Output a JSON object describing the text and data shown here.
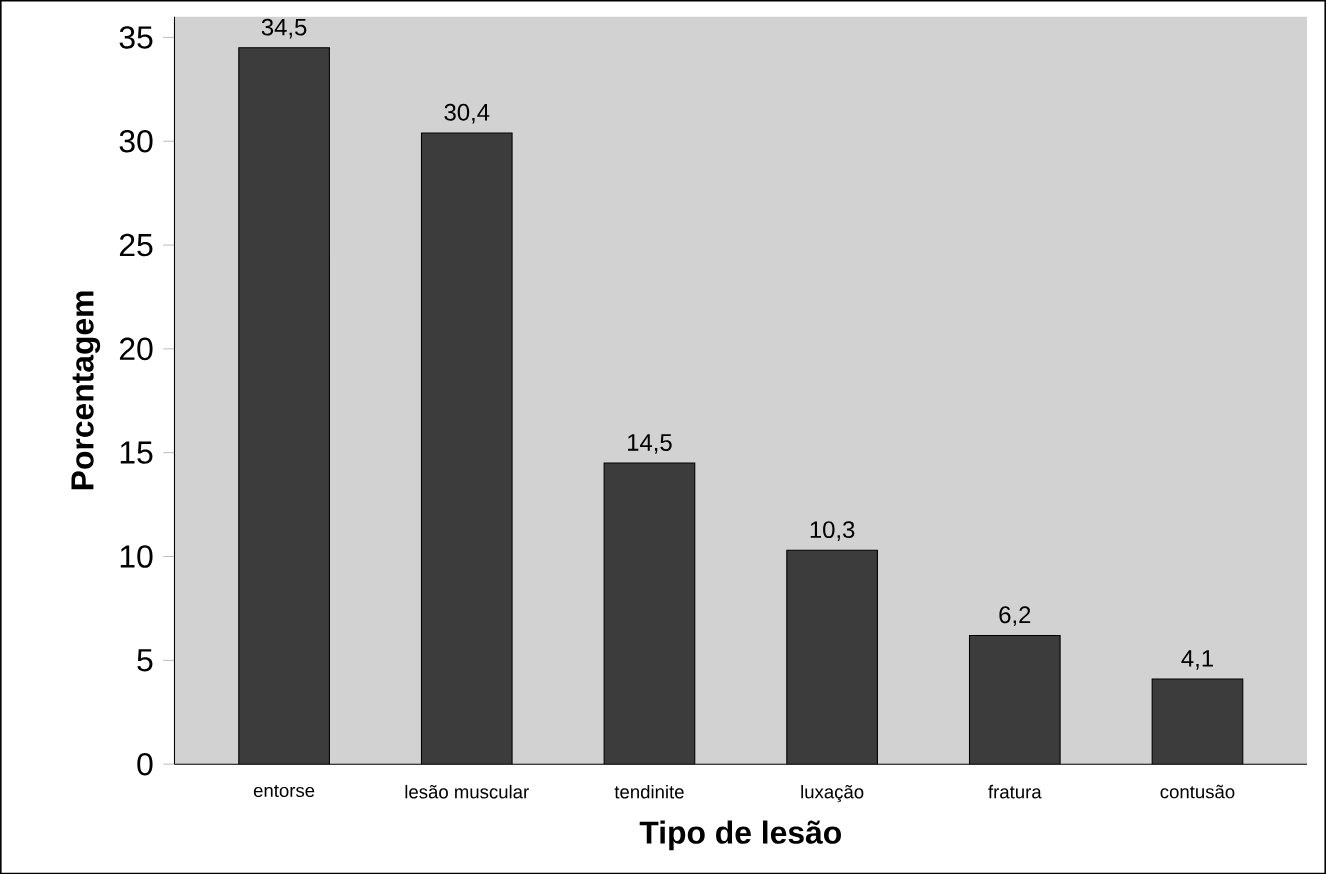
{
  "chart_data": {
    "type": "bar",
    "xlabel": "Tipo de lesão",
    "ylabel": "Porcentagem",
    "categories": [
      "entorse",
      "lesão muscular",
      "tendinite",
      "luxação",
      "fratura",
      "contusão"
    ],
    "values": [
      34.5,
      30.4,
      14.5,
      10.3,
      6.2,
      4.1
    ],
    "value_labels": [
      "34,5",
      "30,4",
      "14,5",
      "10,3",
      "6,2",
      "4,1"
    ],
    "color": "#3c3c3c",
    "ylim": [
      0,
      36
    ],
    "yticks": [
      0,
      5,
      10,
      15,
      20,
      25,
      30,
      35
    ]
  }
}
